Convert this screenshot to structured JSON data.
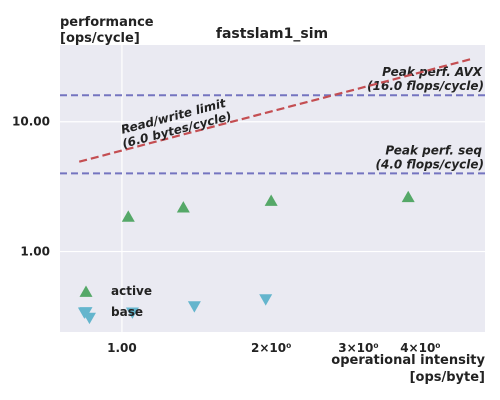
{
  "chart_data": {
    "type": "scatter",
    "title": "fastslam1_sim",
    "ylabel_line1": "performance",
    "ylabel_line2": "[ops/cycle]",
    "xlabel_line1": "operational intensity",
    "xlabel_line2": "[ops/byte]",
    "xscale": "log",
    "yscale": "log",
    "xlim": [
      0.75,
      5.4
    ],
    "ylim": [
      0.24,
      39
    ],
    "grid": true,
    "legend_position": "bottom-left",
    "x_ticks": [
      {
        "value": 1.0,
        "label": "1.00"
      },
      {
        "value": 2.0,
        "label": "2×10⁰"
      },
      {
        "value": 3.0,
        "label": "3×10⁰"
      },
      {
        "value": 4.0,
        "label": "4×10⁰"
      }
    ],
    "y_ticks": [
      {
        "value": 1.0,
        "label": "1.00"
      },
      {
        "value": 10.0,
        "label": "10.00"
      }
    ],
    "roofs": [
      {
        "value": 16.0,
        "label1": "Peak perf. AVX",
        "label2": "(16.0 flops/cycle)",
        "color": "#7474c0"
      },
      {
        "value": 4.0,
        "label1": "Peak perf. seq",
        "label2": "(4.0 flops/cycle)",
        "color": "#7474c0"
      }
    ],
    "bandwidth": {
      "bytes_per_cycle": 6.0,
      "x_range": [
        0.82,
        5.1
      ],
      "label1": "Read/write limit",
      "label2": "(6.0 bytes/cycle)",
      "color": "#c44e52"
    },
    "series": [
      {
        "name": "active",
        "marker": "triangle-up",
        "color": "#55a868",
        "points": [
          [
            1.03,
            1.85
          ],
          [
            1.33,
            2.18
          ],
          [
            2.0,
            2.45
          ],
          [
            3.78,
            2.62
          ]
        ]
      },
      {
        "name": "base",
        "marker": "triangle-down",
        "color": "#64b5cd",
        "points": [
          [
            0.84,
            0.34
          ],
          [
            0.86,
            0.31
          ],
          [
            1.05,
            0.34
          ],
          [
            1.4,
            0.38
          ],
          [
            1.95,
            0.43
          ]
        ]
      }
    ]
  }
}
